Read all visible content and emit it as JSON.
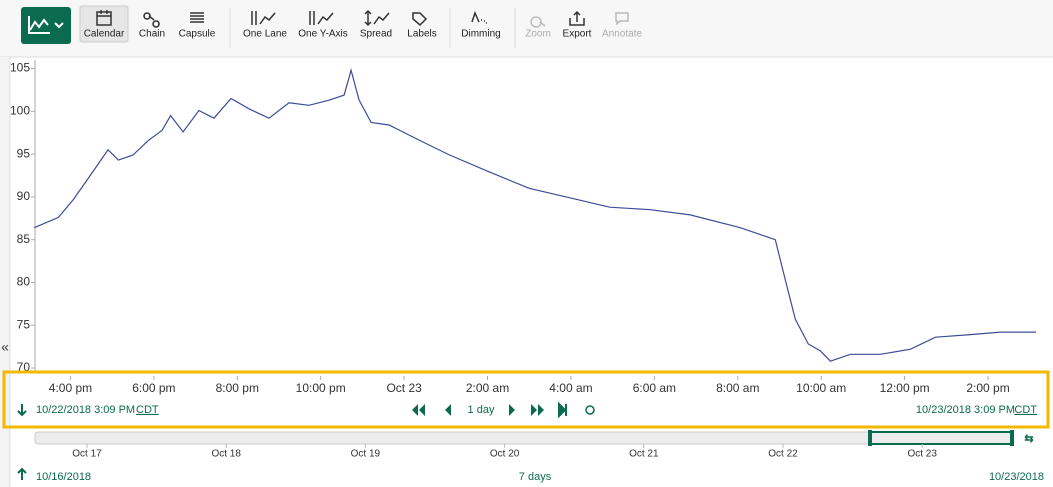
{
  "toolbar": {
    "buttons": [
      "Calendar",
      "Chain",
      "Capsule",
      "One Lane",
      "One Y-Axis",
      "Spread",
      "Labels",
      "Dimming",
      "Zoom",
      "Export",
      "Annotate"
    ]
  },
  "chart_data": {
    "type": "line",
    "x": [
      15.13,
      15.71,
      16.07,
      16.43,
      16.9,
      17.15,
      17.5,
      17.87,
      18.2,
      18.4,
      18.7,
      19.08,
      19.44,
      19.85,
      20.28,
      20.76,
      21.24,
      21.72,
      22.2,
      22.56,
      22.73,
      22.92,
      23.21,
      23.64,
      24.37,
      25.09,
      26.05,
      27.0,
      27.96,
      28.93,
      29.9,
      30.86,
      32.06,
      32.9,
      33.14,
      33.38,
      33.69,
      33.98,
      34.22,
      34.7,
      35.42,
      36.14,
      36.74,
      37.58,
      38.3,
      39.15
    ],
    "series": [
      {
        "color": "#3d4c97",
        "values": [
          86.4,
          87.6,
          89.7,
          92.2,
          95.5,
          94.3,
          94.9,
          96.6,
          97.8,
          99.5,
          97.6,
          100.1,
          99.2,
          101.5,
          100.3,
          99.2,
          101.0,
          100.7,
          101.3,
          101.9,
          104.8,
          101.3,
          98.7,
          98.4,
          96.6,
          94.9,
          92.9,
          91.0,
          89.9,
          88.8,
          88.5,
          87.9,
          86.4,
          85.0,
          80.3,
          75.7,
          72.8,
          72.0,
          70.8,
          71.6,
          71.6,
          72.2,
          73.6,
          73.9,
          74.2,
          74.2
        ]
      }
    ],
    "xlim": [
      15.15,
      39.15
    ],
    "xticks": [
      {
        "value": 16,
        "label": "4:00 pm"
      },
      {
        "value": 18,
        "label": "6:00 pm"
      },
      {
        "value": 20,
        "label": "8:00 pm"
      },
      {
        "value": 22,
        "label": "10:00 pm"
      },
      {
        "value": 24,
        "label": "Oct 23"
      },
      {
        "value": 26,
        "label": "2:00 am"
      },
      {
        "value": 28,
        "label": "4:00 am"
      },
      {
        "value": 30,
        "label": "6:00 am"
      },
      {
        "value": 32,
        "label": "8:00 am"
      },
      {
        "value": 34,
        "label": "10:00 am"
      },
      {
        "value": 36,
        "label": "12:00 pm"
      },
      {
        "value": 38,
        "label": "2:00 pm"
      }
    ],
    "ylim": [
      70,
      106
    ],
    "yticks": [
      70,
      75,
      80,
      85,
      90,
      95,
      100,
      105
    ]
  },
  "time_range": {
    "start": "10/22/2018 3:09 PM",
    "start_zone": "CDT",
    "duration": "1 day",
    "end": "10/23/2018 3:09 PM",
    "end_zone": "CDT"
  },
  "navigator": {
    "ticks": [
      "Oct 17",
      "Oct 18",
      "Oct 19",
      "Oct 20",
      "Oct 21",
      "Oct 22",
      "Oct 23"
    ],
    "start": "10/16/2018",
    "duration": "7 days",
    "end": "10/23/2018"
  }
}
